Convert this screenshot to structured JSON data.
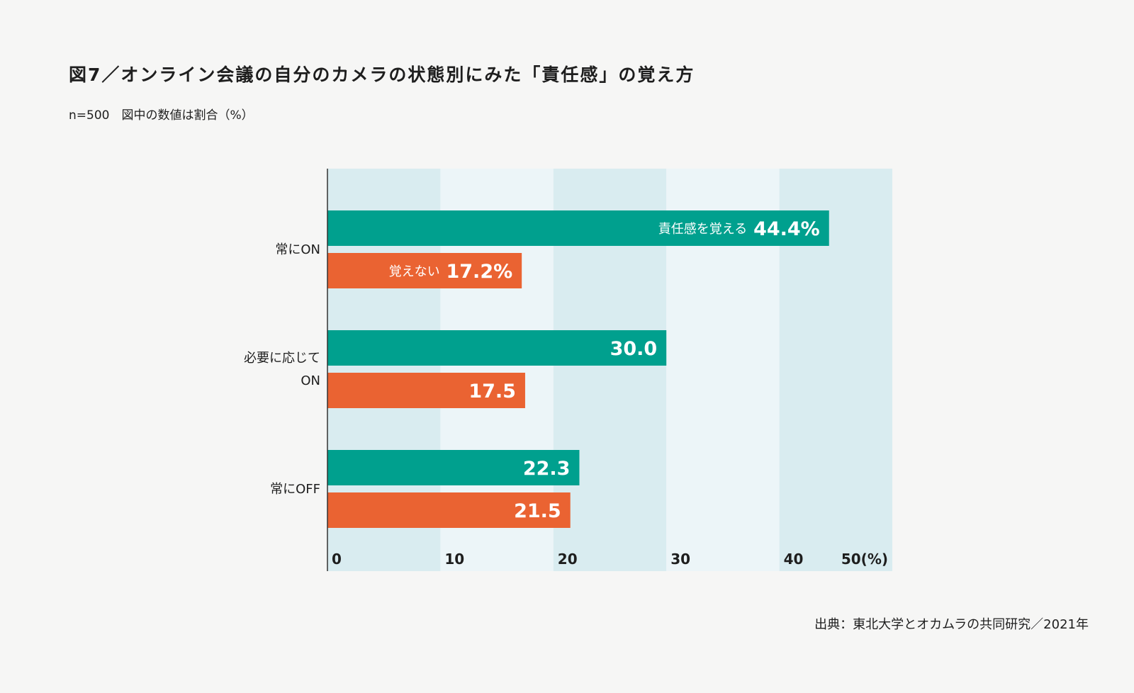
{
  "title": "図7／オンライン会議の自分のカメラの状態別にみた「責任感」の覚え方",
  "subtitle": "n=500　図中の数値は割合（%）",
  "source": "出典：東北大学とオカムラの共同研究／2021年",
  "colors": {
    "feel": "#00a08e",
    "not_feel": "#ea6332",
    "band_dark": "#d9ecf0",
    "band_light": "#ecf5f8",
    "axis": "#333333"
  },
  "chart_data": {
    "type": "bar",
    "orientation": "horizontal",
    "categories": [
      [
        "常にON"
      ],
      [
        "必要に応じて",
        "ON"
      ],
      [
        "常にOFF"
      ]
    ],
    "series": [
      {
        "name": "責任感を覚える",
        "values": [
          44.4,
          30.0,
          22.3
        ],
        "value_labels": [
          "44.4%",
          "30.0",
          "22.3"
        ]
      },
      {
        "name": "覚えない",
        "values": [
          17.2,
          17.5,
          21.5
        ],
        "value_labels": [
          "17.2%",
          "17.5",
          "21.5"
        ]
      }
    ],
    "xlim": [
      0,
      50
    ],
    "x_ticks": [
      "0",
      "10",
      "20",
      "30",
      "40",
      "50(%)"
    ],
    "grid": "alternating bands every 10"
  }
}
